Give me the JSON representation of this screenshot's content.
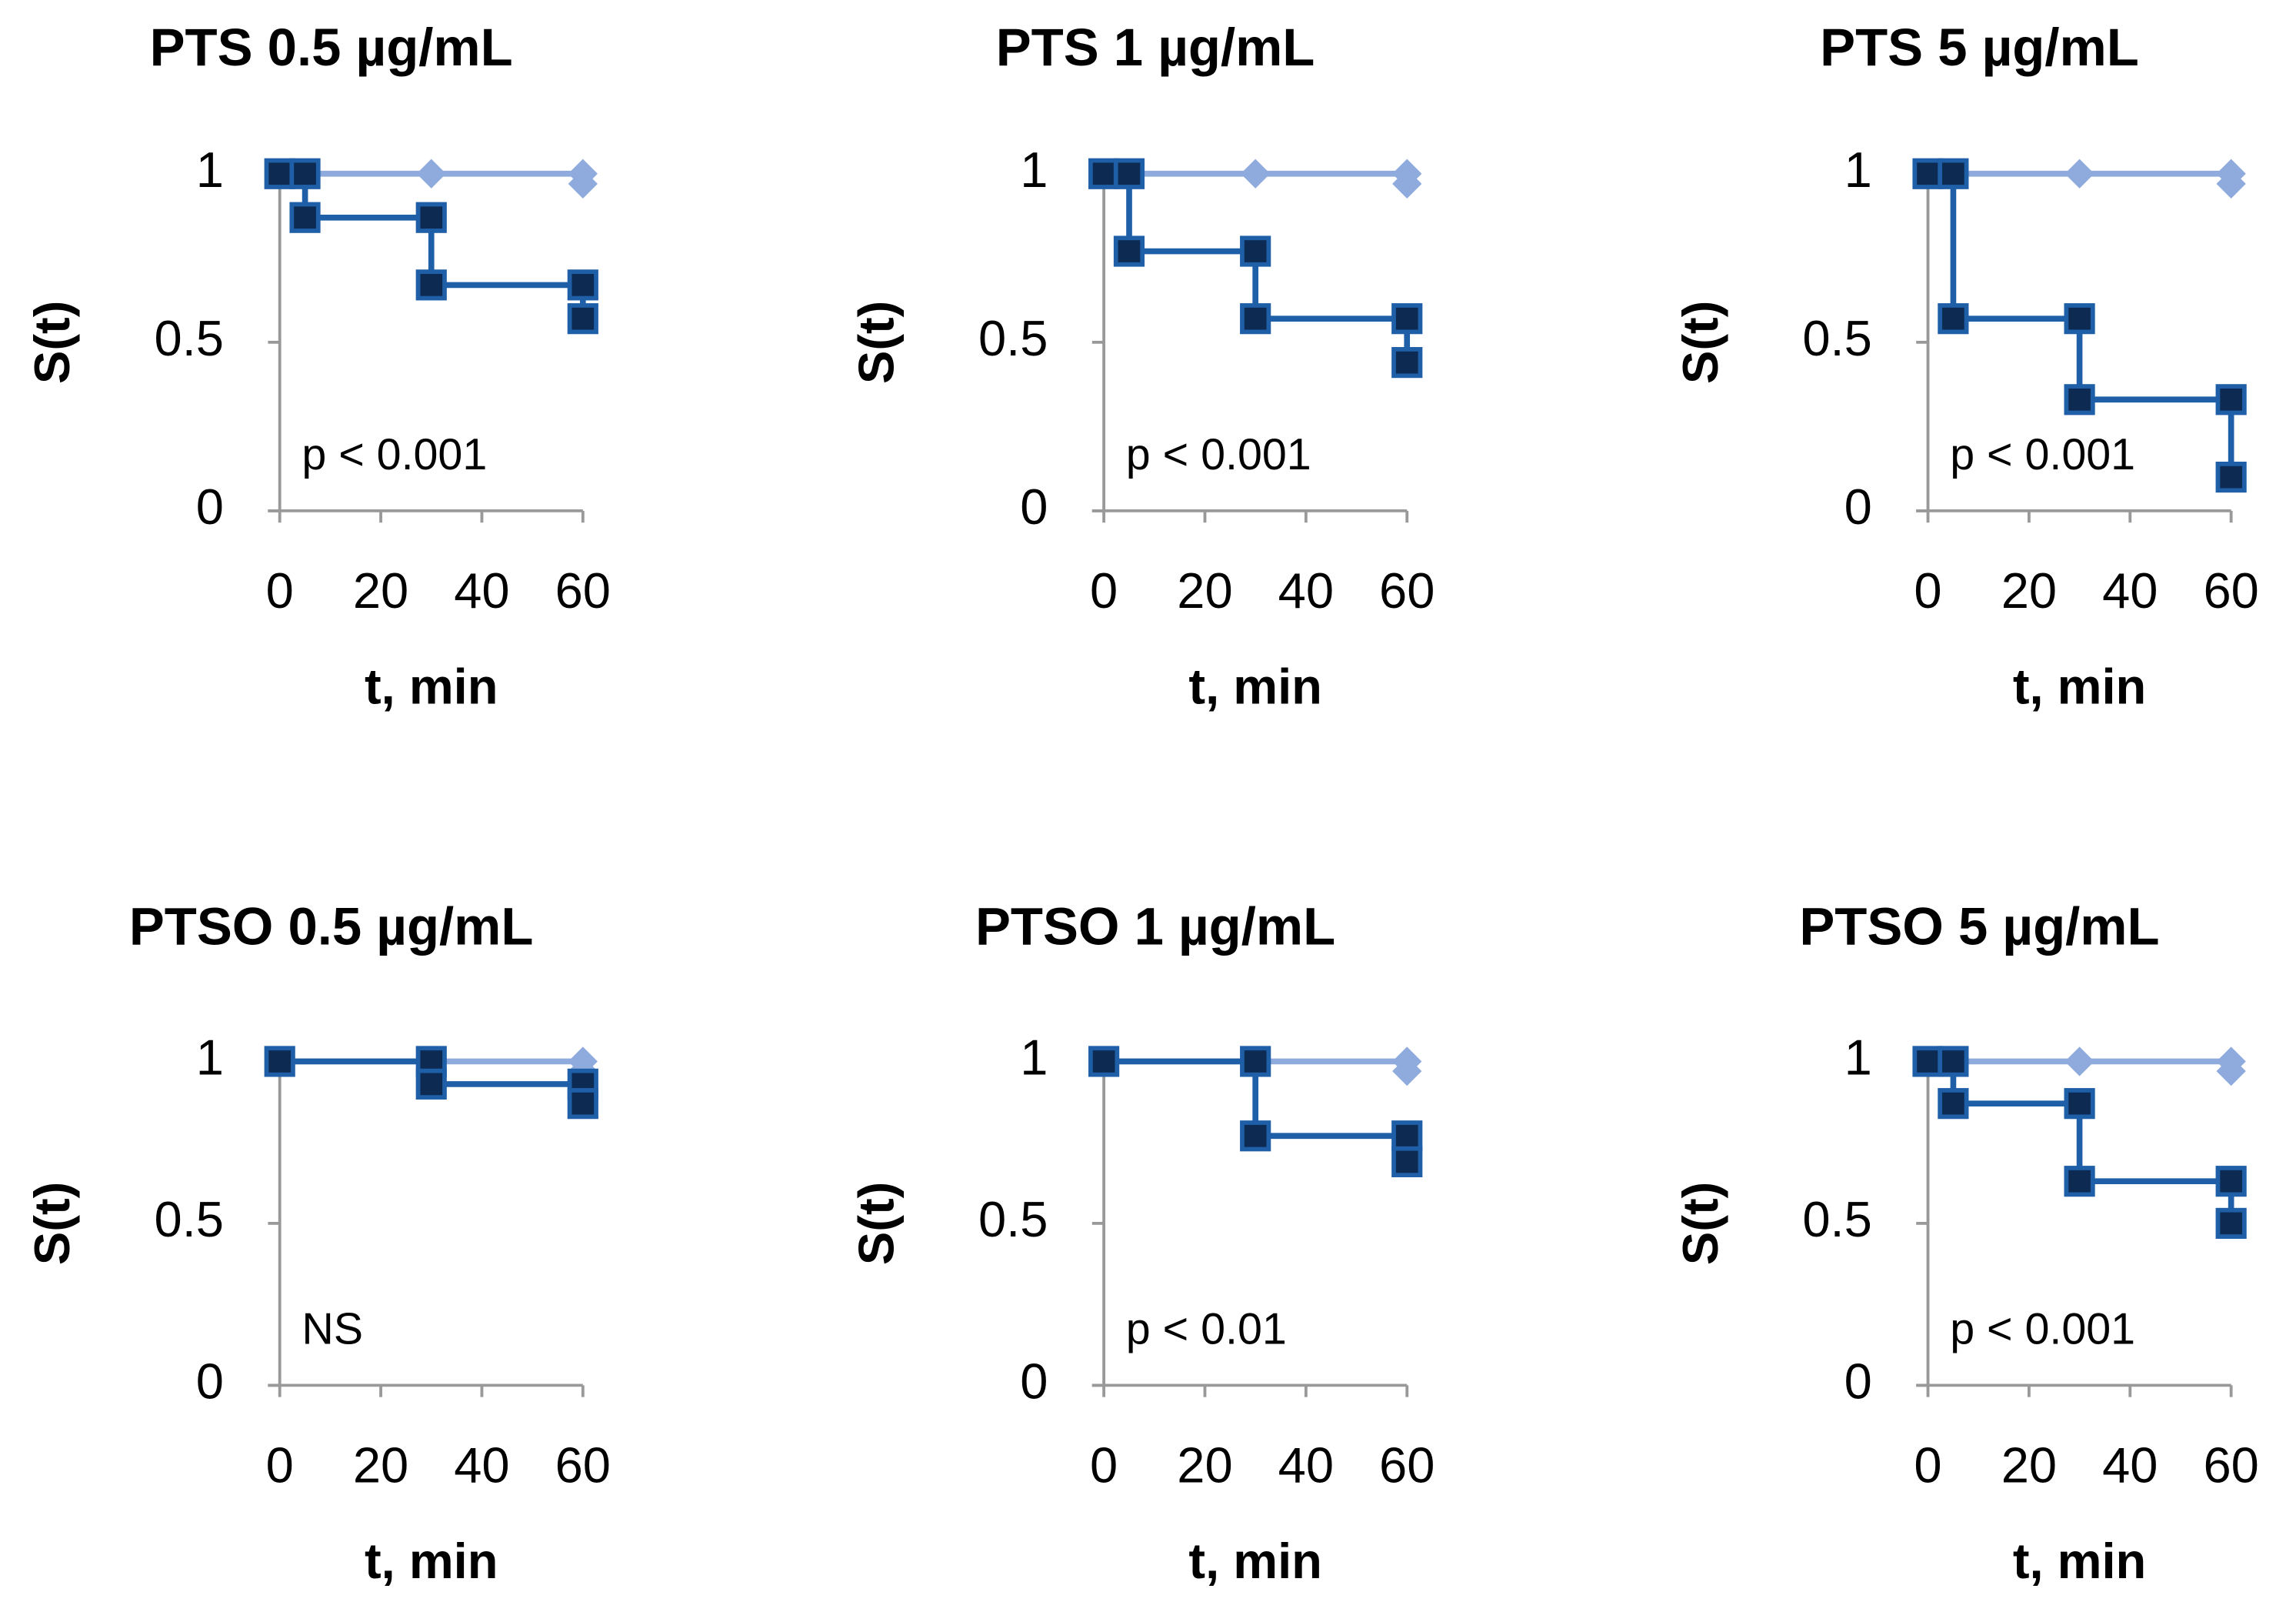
{
  "chart_data": [
    {
      "type": "line",
      "title": "PTS 0.5 µg/mL",
      "xlabel": "t, min",
      "ylabel": "S(t)",
      "annotation": "p < 0.001",
      "xlim": [
        0,
        60
      ],
      "ylim": [
        0,
        1
      ],
      "xticks": [
        0,
        20,
        40,
        60
      ],
      "yticks": [
        0,
        0.5,
        1
      ],
      "series": [
        {
          "color": "#8faadc",
          "marker": "diamond",
          "x": [
            0,
            30,
            60,
            60
          ],
          "values": [
            1,
            1,
            1,
            0.97
          ]
        },
        {
          "color": "#1f5fa8",
          "marker": "square",
          "x": [
            0,
            5,
            5,
            30,
            30,
            60,
            60
          ],
          "values": [
            1,
            1,
            0.87,
            0.87,
            0.67,
            0.67,
            0.57
          ]
        }
      ]
    },
    {
      "type": "line",
      "title": "PTS 1 µg/mL",
      "xlabel": "t, min",
      "ylabel": "S(t)",
      "annotation": "p < 0.001",
      "xlim": [
        0,
        60
      ],
      "ylim": [
        0,
        1
      ],
      "xticks": [
        0,
        20,
        40,
        60
      ],
      "yticks": [
        0,
        0.5,
        1
      ],
      "series": [
        {
          "color": "#8faadc",
          "marker": "diamond",
          "x": [
            0,
            30,
            60,
            60
          ],
          "values": [
            1,
            1,
            1,
            0.97
          ]
        },
        {
          "color": "#1f5fa8",
          "marker": "square",
          "x": [
            0,
            5,
            5,
            30,
            30,
            60,
            60
          ],
          "values": [
            1,
            1,
            0.77,
            0.77,
            0.57,
            0.57,
            0.44
          ]
        }
      ]
    },
    {
      "type": "line",
      "title": "PTS 5 µg/mL",
      "xlabel": "t, min",
      "ylabel": "S(t)",
      "annotation": "p < 0.001",
      "xlim": [
        0,
        60
      ],
      "ylim": [
        0,
        1
      ],
      "xticks": [
        0,
        20,
        40,
        60
      ],
      "yticks": [
        0,
        0.5,
        1
      ],
      "series": [
        {
          "color": "#8faadc",
          "marker": "diamond",
          "x": [
            0,
            30,
            60,
            60
          ],
          "values": [
            1,
            1,
            1,
            0.97
          ]
        },
        {
          "color": "#1f5fa8",
          "marker": "square",
          "x": [
            0,
            5,
            5,
            30,
            30,
            60,
            60
          ],
          "values": [
            1,
            1,
            0.57,
            0.57,
            0.33,
            0.33,
            0.1
          ]
        }
      ]
    },
    {
      "type": "line",
      "title": "PTSO 0.5 µg/mL",
      "xlabel": "t, min",
      "ylabel": "S(t)",
      "annotation": "NS",
      "xlim": [
        0,
        60
      ],
      "ylim": [
        0,
        1
      ],
      "xticks": [
        0,
        20,
        40,
        60
      ],
      "yticks": [
        0,
        0.5,
        1
      ],
      "series": [
        {
          "color": "#8faadc",
          "marker": "diamond",
          "x": [
            0,
            30,
            60,
            60
          ],
          "values": [
            1,
            1,
            1,
            0.97
          ]
        },
        {
          "color": "#1f5fa8",
          "marker": "square",
          "x": [
            0,
            30,
            30,
            60,
            60
          ],
          "values": [
            1,
            1,
            0.93,
            0.93,
            0.87
          ]
        }
      ]
    },
    {
      "type": "line",
      "title": "PTSO 1 µg/mL",
      "xlabel": "t, min",
      "ylabel": "S(t)",
      "annotation": "p < 0.01",
      "xlim": [
        0,
        60
      ],
      "ylim": [
        0,
        1
      ],
      "xticks": [
        0,
        20,
        40,
        60
      ],
      "yticks": [
        0,
        0.5,
        1
      ],
      "series": [
        {
          "color": "#8faadc",
          "marker": "diamond",
          "x": [
            0,
            30,
            60,
            60
          ],
          "values": [
            1,
            1,
            1,
            0.97
          ]
        },
        {
          "color": "#1f5fa8",
          "marker": "square",
          "x": [
            0,
            30,
            30,
            60,
            60
          ],
          "values": [
            1,
            1,
            0.77,
            0.77,
            0.69
          ]
        }
      ]
    },
    {
      "type": "line",
      "title": "PTSO 5 µg/mL",
      "xlabel": "t, min",
      "ylabel": "S(t)",
      "annotation": "p < 0.001",
      "xlim": [
        0,
        60
      ],
      "ylim": [
        0,
        1
      ],
      "xticks": [
        0,
        20,
        40,
        60
      ],
      "yticks": [
        0,
        0.5,
        1
      ],
      "series": [
        {
          "color": "#8faadc",
          "marker": "diamond",
          "x": [
            0,
            30,
            60,
            60
          ],
          "values": [
            1,
            1,
            1,
            0.97
          ]
        },
        {
          "color": "#1f5fa8",
          "marker": "square",
          "x": [
            0,
            5,
            5,
            30,
            30,
            60,
            60
          ],
          "values": [
            1,
            1,
            0.87,
            0.87,
            0.63,
            0.63,
            0.5
          ]
        }
      ]
    }
  ]
}
